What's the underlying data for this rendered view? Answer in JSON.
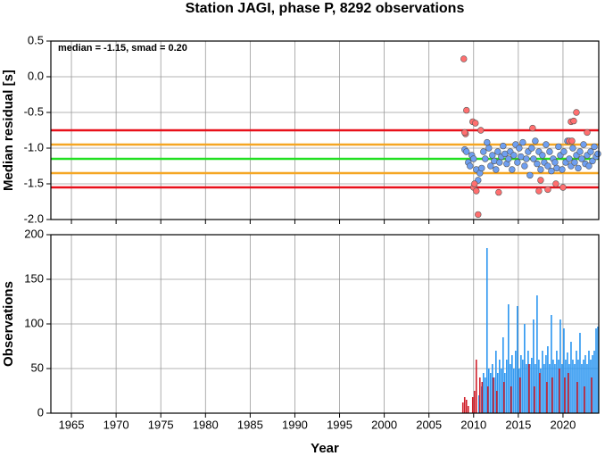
{
  "chart_data": [
    {
      "type": "scatter",
      "title": "Station JAGI, phase P, 8292 observations",
      "annotation": "median = -1.15, smad = 0.20",
      "ylabel": "Median residual [s]",
      "xlim": [
        1962.7,
        2024.0
      ],
      "xticks": [
        1965,
        1970,
        1975,
        1980,
        1985,
        1990,
        1995,
        2000,
        2005,
        2010,
        2015,
        2020
      ],
      "ylim": [
        -2,
        0.5
      ],
      "yticks": [
        0.5,
        {
          "value": 0,
          "label": "0.0"
        },
        -0.5,
        {
          "value": -1,
          "label": "-1.0"
        },
        -1.5,
        {
          "value": -2,
          "label": "-2.0"
        }
      ],
      "grid": true,
      "hlines": [
        {
          "value": -0.75,
          "color": "#e8101a"
        },
        {
          "value": -1.55,
          "color": "#e8101a"
        },
        {
          "value": -0.95,
          "color": "#f5a623"
        },
        {
          "value": -1.35,
          "color": "#f5a623"
        },
        {
          "value": -1.15,
          "color": "#22e022"
        }
      ],
      "series": [
        {
          "color": "#6f9ff0",
          "x": [
            2009.0,
            2009.2,
            2009.4,
            2009.6,
            2009.8,
            2010.0,
            2010.3,
            2010.5,
            2010.7,
            2010.9,
            2011.1,
            2011.3,
            2011.5,
            2011.7,
            2011.9,
            2012.1,
            2012.3,
            2012.5,
            2012.7,
            2012.9,
            2013.1,
            2013.3,
            2013.5,
            2013.7,
            2013.9,
            2014.1,
            2014.3,
            2014.5,
            2014.7,
            2014.9,
            2015.1,
            2015.3,
            2015.5,
            2015.7,
            2015.9,
            2016.1,
            2016.3,
            2016.5,
            2016.7,
            2016.9,
            2017.1,
            2017.3,
            2017.5,
            2017.7,
            2017.9,
            2018.1,
            2018.3,
            2018.5,
            2018.7,
            2018.9,
            2019.1,
            2019.3,
            2019.5,
            2019.7,
            2019.9,
            2020.1,
            2020.3,
            2020.5,
            2020.7,
            2020.9,
            2021.1,
            2021.3,
            2021.5,
            2021.7,
            2021.9,
            2022.1,
            2022.3,
            2022.5,
            2022.7,
            2022.9,
            2023.1,
            2023.3,
            2023.5,
            2023.7,
            2023.9
          ],
          "values": [
            -1.02,
            -1.05,
            -1.2,
            -1.25,
            -1.1,
            -1.15,
            -1.3,
            -1.45,
            -1.35,
            -1.28,
            -1.05,
            -1.15,
            -0.92,
            -1.0,
            -1.25,
            -1.1,
            -1.18,
            -1.3,
            -1.05,
            -1.2,
            -1.12,
            -0.97,
            -1.08,
            -1.22,
            -1.15,
            -1.05,
            -1.3,
            -1.1,
            -0.95,
            -1.2,
            -1.0,
            -1.12,
            -0.92,
            -1.25,
            -1.15,
            -1.05,
            -1.38,
            -1.0,
            -1.15,
            -0.9,
            -1.22,
            -1.05,
            -1.3,
            -1.1,
            -1.2,
            -0.95,
            -1.25,
            -1.05,
            -1.32,
            -1.15,
            -1.2,
            -1.28,
            -0.98,
            -1.1,
            -1.3,
            -1.05,
            -1.2,
            -0.9,
            -1.15,
            -1.25,
            -1.0,
            -1.2,
            -1.1,
            -1.28,
            -1.05,
            -1.15,
            -0.95,
            -1.22,
            -1.1,
            -1.25,
            -1.05,
            -1.18,
            -0.98,
            -1.12,
            -1.08
          ]
        },
        {
          "color": "#ff6f6f",
          "x": [
            2008.9,
            2009.2,
            2009.1,
            2009.0,
            2009.9,
            2010.2,
            2010.0,
            2010.3,
            2010.1,
            2010.5,
            2010.8,
            2012.8,
            2016.6,
            2017.3,
            2017.5,
            2018.3,
            2019.2,
            2020.0,
            2020.9,
            2021.2,
            2021.5,
            2020.7,
            2022.7,
            2021.0
          ],
          "values": [
            0.25,
            -0.47,
            -0.8,
            -0.78,
            -0.63,
            -0.65,
            -1.55,
            -1.6,
            -1.5,
            -1.93,
            -0.75,
            -1.62,
            -0.72,
            -1.6,
            -1.45,
            -1.58,
            -1.5,
            -1.55,
            -0.63,
            -0.62,
            -0.5,
            -0.9,
            -0.78,
            -0.9
          ]
        }
      ]
    },
    {
      "type": "bar",
      "xlabel": "Year",
      "ylabel": "Observations",
      "xlim": [
        1962.7,
        2024.0
      ],
      "xticks": [
        1965,
        1970,
        1975,
        1980,
        1985,
        1990,
        1995,
        2000,
        2005,
        2010,
        2015,
        2020
      ],
      "ylim": [
        0,
        200
      ],
      "yticks": [
        0,
        50,
        100,
        150,
        200
      ],
      "grid": true,
      "series": [
        {
          "color": "#2a95f0",
          "x": [
            2010.6,
            2010.9,
            2011.1,
            2011.3,
            2011.5,
            2011.7,
            2011.9,
            2012.1,
            2012.3,
            2012.5,
            2012.7,
            2012.9,
            2013.1,
            2013.3,
            2013.5,
            2013.7,
            2013.9,
            2014.1,
            2014.3,
            2014.5,
            2014.7,
            2014.9,
            2015.1,
            2015.3,
            2015.5,
            2015.7,
            2015.9,
            2016.1,
            2016.3,
            2016.5,
            2016.7,
            2016.9,
            2017.1,
            2017.3,
            2017.5,
            2017.7,
            2017.9,
            2018.1,
            2018.3,
            2018.5,
            2018.7,
            2018.9,
            2019.1,
            2019.3,
            2019.5,
            2019.7,
            2019.9,
            2020.1,
            2020.3,
            2020.5,
            2020.7,
            2020.9,
            2021.1,
            2021.3,
            2021.5,
            2021.7,
            2021.9,
            2022.1,
            2022.3,
            2022.5,
            2022.7,
            2022.9,
            2023.1,
            2023.3,
            2023.5,
            2023.7,
            2023.9
          ],
          "values": [
            20,
            30,
            45,
            40,
            185,
            50,
            45,
            55,
            40,
            70,
            45,
            60,
            50,
            85,
            45,
            60,
            122,
            55,
            65,
            50,
            70,
            120,
            50,
            65,
            60,
            100,
            55,
            70,
            55,
            62,
            105,
            55,
            132,
            60,
            50,
            70,
            55,
            65,
            75,
            55,
            110,
            60,
            55,
            70,
            60,
            105,
            55,
            95,
            60,
            68,
            55,
            80,
            60,
            55,
            70,
            60,
            90,
            55,
            60,
            65,
            55,
            70,
            60,
            65,
            70,
            95,
            97
          ]
        },
        {
          "color": "#d0202a",
          "x": [
            2008.8,
            2009.0,
            2009.2,
            2009.4,
            2009.9,
            2010.1,
            2010.3,
            2010.7,
            2010.95,
            2011.6,
            2012.2,
            2012.6,
            2013.4,
            2014.2,
            2015.2,
            2016.2,
            2016.8,
            2017.4,
            2018.2,
            2018.8,
            2019.6,
            2020.2,
            2020.6,
            2021.6,
            2022.4,
            2023.2
          ],
          "values": [
            12,
            18,
            15,
            8,
            18,
            25,
            60,
            40,
            35,
            30,
            40,
            25,
            35,
            30,
            40,
            55,
            30,
            45,
            35,
            40,
            50,
            40,
            45,
            35,
            30,
            40
          ]
        }
      ]
    }
  ]
}
